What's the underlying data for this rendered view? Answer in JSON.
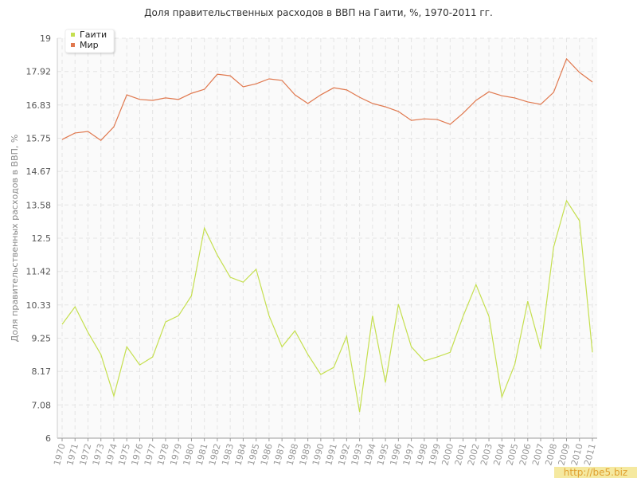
{
  "chart_data": {
    "type": "line",
    "title": "Доля правительственных расходов в ВВП на Гаити, %, 1970-2011 гг.",
    "y_label": "Доля правительственных расходов в ВВП, %",
    "x": [
      1970,
      1971,
      1972,
      1973,
      1974,
      1975,
      1976,
      1977,
      1978,
      1979,
      1980,
      1981,
      1982,
      1983,
      1984,
      1985,
      1986,
      1987,
      1988,
      1989,
      1990,
      1991,
      1992,
      1993,
      1994,
      1995,
      1996,
      1997,
      1998,
      1999,
      2000,
      2001,
      2002,
      2003,
      2004,
      2005,
      2006,
      2007,
      2008,
      2009,
      2010,
      2011
    ],
    "series": [
      {
        "name": "Гаити",
        "color": "#c5df4f",
        "values": [
          9.7,
          10.27,
          9.44,
          8.72,
          7.37,
          8.97,
          8.38,
          8.64,
          9.78,
          9.98,
          10.63,
          12.83,
          11.95,
          11.23,
          11.07,
          11.49,
          9.98,
          8.97,
          9.49,
          8.72,
          8.07,
          8.3,
          9.31,
          6.85,
          9.98,
          7.81,
          10.35,
          8.97,
          8.51,
          8.64,
          8.79,
          9.96,
          10.99,
          9.96,
          7.34,
          8.4,
          10.45,
          8.9,
          12.21,
          13.72,
          13.07,
          8.79
        ]
      },
      {
        "name": "Мир",
        "color": "#e0784e",
        "values": [
          15.71,
          15.92,
          15.97,
          15.68,
          16.12,
          17.16,
          17.01,
          16.98,
          17.06,
          17.01,
          17.21,
          17.34,
          17.83,
          17.78,
          17.42,
          17.52,
          17.68,
          17.63,
          17.16,
          16.88,
          17.16,
          17.39,
          17.32,
          17.08,
          16.88,
          16.77,
          16.62,
          16.33,
          16.38,
          16.36,
          16.2,
          16.56,
          16.98,
          17.26,
          17.13,
          17.06,
          16.93,
          16.85,
          17.24,
          18.33,
          17.89,
          17.58
        ]
      }
    ],
    "ylim": [
      6,
      19
    ],
    "yticks": [
      6,
      7.08,
      8.17,
      9.25,
      10.33,
      11.42,
      12.5,
      13.58,
      14.67,
      15.75,
      16.83,
      17.92,
      19
    ],
    "grid": true,
    "legend": "top-left",
    "watermark": "http://be5.biz"
  }
}
